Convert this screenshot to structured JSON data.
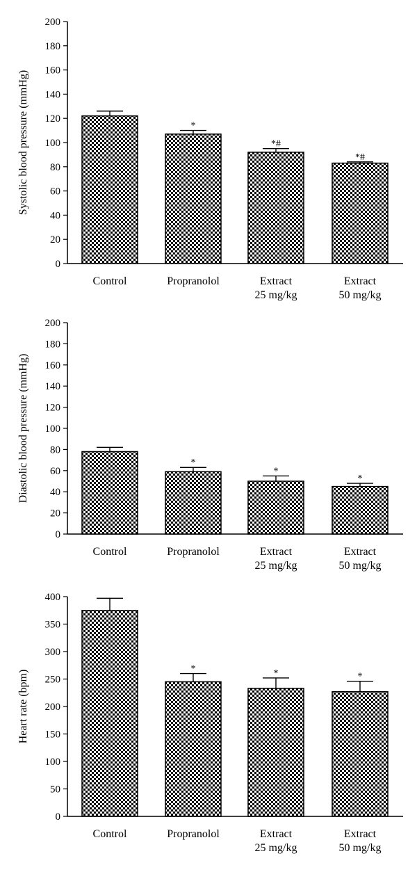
{
  "chart_data": [
    {
      "type": "bar",
      "ylabel": "Systolic blood pressure (mmHg)",
      "xlabel": "",
      "ylim": [
        0,
        200
      ],
      "yticks": [
        0,
        20,
        40,
        60,
        80,
        100,
        120,
        140,
        160,
        180,
        200
      ],
      "categories": [
        [
          "Control"
        ],
        [
          "Propranolol"
        ],
        [
          "Extract",
          "25 mg/kg"
        ],
        [
          "Extract",
          "50 mg/kg"
        ]
      ],
      "values": [
        122,
        107,
        92,
        83
      ],
      "errors": [
        4,
        3,
        3,
        1
      ],
      "annotations": [
        "",
        "*",
        "*#",
        "*#"
      ],
      "grid": false,
      "bar_fill": "checkered black and white"
    },
    {
      "type": "bar",
      "ylabel": "Diastolic blood pressure (mmHg)",
      "xlabel": "",
      "ylim": [
        0,
        200
      ],
      "yticks": [
        0,
        20,
        40,
        60,
        80,
        100,
        120,
        140,
        160,
        180,
        200
      ],
      "categories": [
        [
          "Control"
        ],
        [
          "Propranolol"
        ],
        [
          "Extract",
          "25 mg/kg"
        ],
        [
          "Extract",
          "50 mg/kg"
        ]
      ],
      "values": [
        78,
        59,
        50,
        45
      ],
      "errors": [
        4,
        4,
        5,
        3
      ],
      "annotations": [
        "",
        "*",
        "*",
        "*"
      ],
      "grid": false,
      "bar_fill": "checkered black and white"
    },
    {
      "type": "bar",
      "ylabel": "Heart rate (bpm)",
      "xlabel": "",
      "ylim": [
        0,
        400
      ],
      "yticks": [
        0,
        50,
        100,
        150,
        200,
        250,
        300,
        350,
        400
      ],
      "categories": [
        [
          "Control"
        ],
        [
          "Propranolol"
        ],
        [
          "Extract",
          "25 mg/kg"
        ],
        [
          "Extract",
          "50 mg/kg"
        ]
      ],
      "values": [
        375,
        245,
        233,
        227
      ],
      "errors": [
        22,
        15,
        19,
        19
      ],
      "annotations": [
        "",
        "*",
        "*",
        "*"
      ],
      "grid": false,
      "bar_fill": "checkered black and white"
    }
  ]
}
